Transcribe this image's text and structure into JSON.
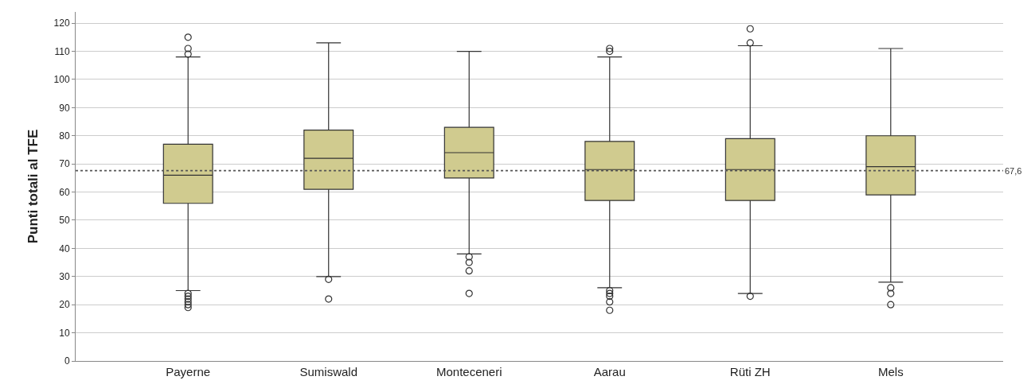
{
  "chart_data": {
    "type": "box",
    "ylabel": "Punti totali al TFE",
    "categories": [
      "Payerne",
      "Sumiswald",
      "Monteceneri",
      "Aarau",
      "Rüti ZH",
      "Mels"
    ],
    "boxes": [
      {
        "low": 25,
        "q1": 56,
        "median": 66,
        "q3": 77,
        "high": 108,
        "outliers": [
          115,
          111,
          109,
          24,
          23,
          22,
          21,
          20,
          19
        ]
      },
      {
        "low": 30,
        "q1": 61,
        "median": 72,
        "q3": 82,
        "high": 113,
        "outliers": [
          29,
          22
        ]
      },
      {
        "low": 38,
        "q1": 65,
        "median": 74,
        "q3": 83,
        "high": 110,
        "outliers": [
          37,
          35,
          32,
          24
        ]
      },
      {
        "low": 26,
        "q1": 57,
        "median": 68,
        "q3": 78,
        "high": 108,
        "outliers": [
          111,
          110,
          25,
          24,
          23,
          21,
          18
        ]
      },
      {
        "low": 24,
        "q1": 57,
        "median": 68,
        "q3": 79,
        "high": 112,
        "outliers": [
          118,
          113,
          23
        ]
      },
      {
        "low": 28,
        "q1": 59,
        "median": 69,
        "q3": 80,
        "high": 111,
        "outliers": [
          26,
          24,
          20
        ]
      }
    ],
    "color": "#d0cb8f",
    "ylim": [
      0,
      124
    ],
    "yticks": [
      0,
      10,
      20,
      30,
      40,
      50,
      60,
      70,
      80,
      90,
      100,
      110,
      120
    ],
    "ref_lines": [
      {
        "axis": "y",
        "value": 67.6,
        "label": "67,6",
        "line_style": "dotted",
        "color": "#555555"
      }
    ],
    "grid": "y"
  }
}
